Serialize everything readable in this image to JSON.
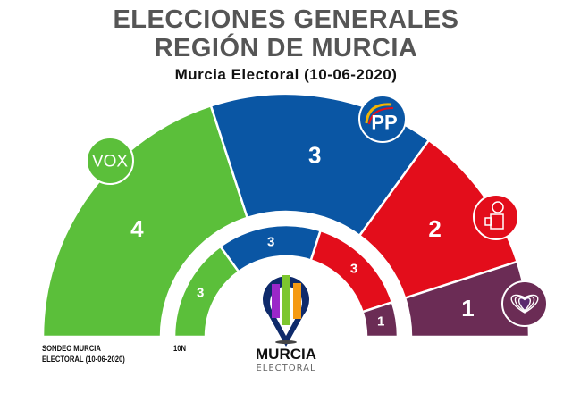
{
  "header": {
    "title_line1": "ELECCIONES GENERALES",
    "title_line2": "REGIÓN DE MURCIA",
    "subtitle": "Murcia Electoral (10-06-2020)"
  },
  "labels": {
    "outer_ring": "SONDEO MURCIA",
    "outer_ring_2": "ELECTORAL (10-06-2020)",
    "inner_ring": "10N"
  },
  "logo": {
    "name": "MURCIA",
    "sub": "ELECTORAL"
  },
  "party_logos": {
    "vox": "VOX",
    "pp": "PP"
  },
  "chart_data": {
    "type": "semicircle-parliament",
    "title": "ELECCIONES GENERALES REGIÓN DE MURCIA",
    "subtitle": "Murcia Electoral (10-06-2020)",
    "total_seats": 10,
    "categories": [
      "VOX",
      "PP",
      "PSOE",
      "Unidas Podemos"
    ],
    "colors": [
      "#5bbf3a",
      "#0a56a4",
      "#e30d1b",
      "#6b2c55"
    ],
    "series": [
      {
        "name": "Sondeo Murcia Electoral (10-06-2020)",
        "ring": "outer",
        "values": [
          4,
          3,
          2,
          1
        ]
      },
      {
        "name": "10N",
        "ring": "inner",
        "values": [
          3,
          3,
          3,
          1
        ]
      }
    ]
  }
}
